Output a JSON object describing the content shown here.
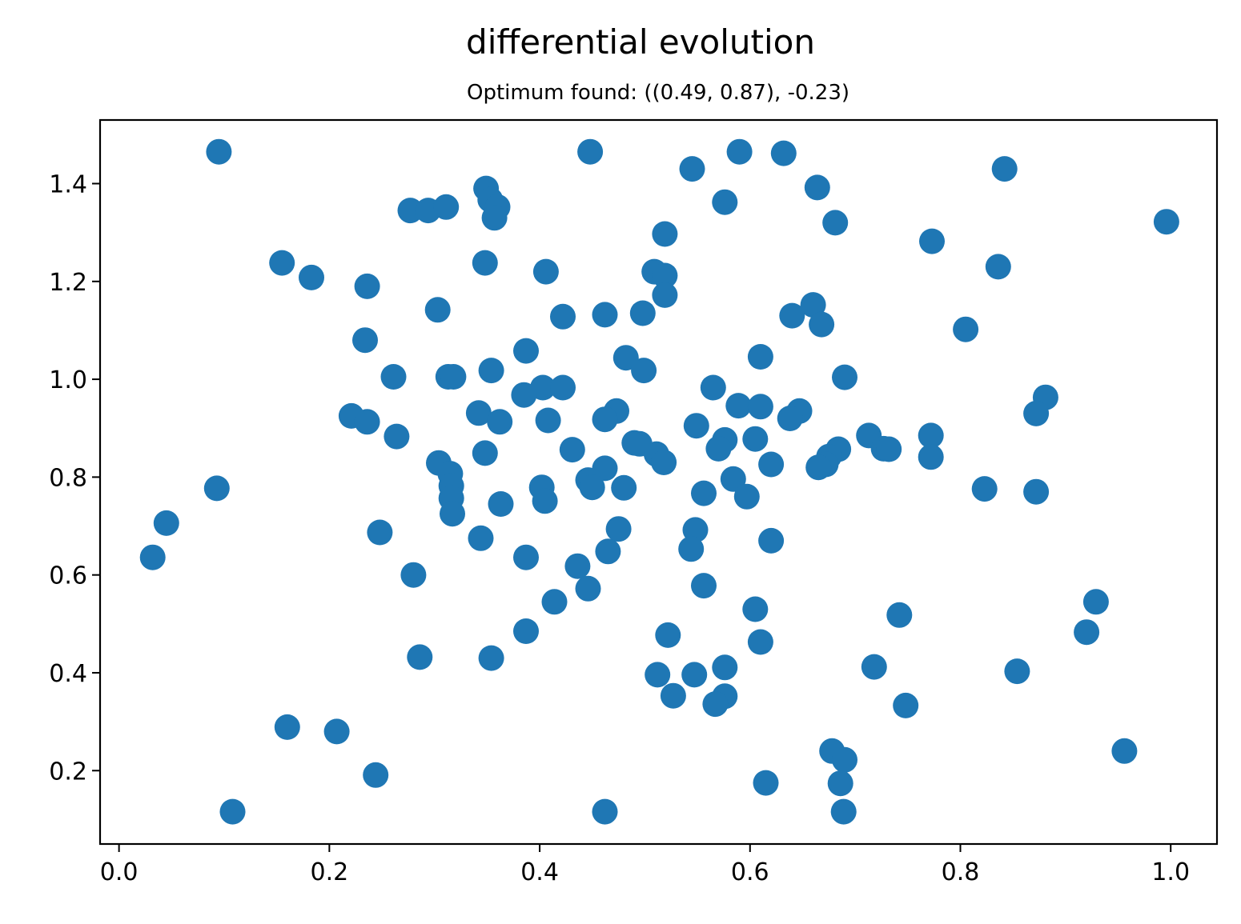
{
  "chart_data": {
    "type": "scatter",
    "title": "differential evolution",
    "subtitle": "Optimum found: ((0.49, 0.87), -0.23)",
    "xlabel": "",
    "ylabel": "",
    "xlim": [
      -0.018,
      1.044
    ],
    "ylim": [
      0.05,
      1.53
    ],
    "xticks": [
      0.0,
      0.2,
      0.4,
      0.6,
      0.8,
      1.0
    ],
    "xtick_labels": [
      "0.0",
      "0.2",
      "0.4",
      "0.6",
      "0.8",
      "1.0"
    ],
    "yticks": [
      0.2,
      0.4,
      0.6,
      0.8,
      1.0,
      1.2,
      1.4
    ],
    "ytick_labels": [
      "0.2",
      "0.4",
      "0.6",
      "0.8",
      "1.0",
      "1.2",
      "1.4"
    ],
    "grid": false,
    "legend": "none",
    "marker_color": "#1f77b4",
    "series": [
      {
        "points": [
          [
            0.095,
            1.465
          ],
          [
            0.448,
            1.465
          ],
          [
            0.59,
            1.465
          ],
          [
            0.632,
            1.462
          ],
          [
            0.545,
            1.43
          ],
          [
            0.842,
            1.43
          ],
          [
            0.349,
            1.39
          ],
          [
            0.664,
            1.392
          ],
          [
            0.353,
            1.367
          ],
          [
            0.576,
            1.362
          ],
          [
            0.277,
            1.345
          ],
          [
            0.294,
            1.345
          ],
          [
            0.311,
            1.352
          ],
          [
            0.36,
            1.352
          ],
          [
            0.357,
            1.33
          ],
          [
            0.681,
            1.32
          ],
          [
            0.996,
            1.322
          ],
          [
            0.519,
            1.297
          ],
          [
            0.773,
            1.282
          ],
          [
            0.155,
            1.238
          ],
          [
            0.348,
            1.238
          ],
          [
            0.836,
            1.23
          ],
          [
            0.183,
            1.208
          ],
          [
            0.406,
            1.22
          ],
          [
            0.509,
            1.22
          ],
          [
            0.519,
            1.212
          ],
          [
            0.236,
            1.19
          ],
          [
            0.519,
            1.172
          ],
          [
            0.66,
            1.152
          ],
          [
            0.303,
            1.142
          ],
          [
            0.498,
            1.135
          ],
          [
            0.462,
            1.132
          ],
          [
            0.422,
            1.128
          ],
          [
            0.64,
            1.13
          ],
          [
            0.668,
            1.112
          ],
          [
            0.805,
            1.102
          ],
          [
            0.234,
            1.08
          ],
          [
            0.387,
            1.058
          ],
          [
            0.482,
            1.044
          ],
          [
            0.61,
            1.046
          ],
          [
            0.354,
            1.018
          ],
          [
            0.499,
            1.018
          ],
          [
            0.261,
            1.005
          ],
          [
            0.313,
            1.005
          ],
          [
            0.318,
            1.005
          ],
          [
            0.69,
            1.004
          ],
          [
            0.565,
            0.983
          ],
          [
            0.403,
            0.983
          ],
          [
            0.422,
            0.983
          ],
          [
            0.385,
            0.968
          ],
          [
            0.881,
            0.963
          ],
          [
            0.589,
            0.946
          ],
          [
            0.61,
            0.944
          ],
          [
            0.647,
            0.935
          ],
          [
            0.473,
            0.935
          ],
          [
            0.221,
            0.925
          ],
          [
            0.342,
            0.931
          ],
          [
            0.638,
            0.92
          ],
          [
            0.872,
            0.93
          ],
          [
            0.236,
            0.913
          ],
          [
            0.362,
            0.913
          ],
          [
            0.408,
            0.916
          ],
          [
            0.462,
            0.918
          ],
          [
            0.549,
            0.905
          ],
          [
            0.264,
            0.883
          ],
          [
            0.713,
            0.885
          ],
          [
            0.772,
            0.885
          ],
          [
            0.605,
            0.878
          ],
          [
            0.576,
            0.876
          ],
          [
            0.49,
            0.87
          ],
          [
            0.495,
            0.868
          ],
          [
            0.57,
            0.858
          ],
          [
            0.727,
            0.858
          ],
          [
            0.732,
            0.857
          ],
          [
            0.431,
            0.856
          ],
          [
            0.684,
            0.857
          ],
          [
            0.348,
            0.849
          ],
          [
            0.511,
            0.847
          ],
          [
            0.675,
            0.842
          ],
          [
            0.772,
            0.841
          ],
          [
            0.518,
            0.83
          ],
          [
            0.304,
            0.829
          ],
          [
            0.62,
            0.826
          ],
          [
            0.672,
            0.826
          ],
          [
            0.665,
            0.82
          ],
          [
            0.462,
            0.818
          ],
          [
            0.315,
            0.807
          ],
          [
            0.584,
            0.796
          ],
          [
            0.446,
            0.794
          ],
          [
            0.316,
            0.782
          ],
          [
            0.402,
            0.779
          ],
          [
            0.48,
            0.778
          ],
          [
            0.45,
            0.779
          ],
          [
            0.093,
            0.777
          ],
          [
            0.823,
            0.776
          ],
          [
            0.872,
            0.77
          ],
          [
            0.556,
            0.767
          ],
          [
            0.597,
            0.76
          ],
          [
            0.316,
            0.757
          ],
          [
            0.405,
            0.751
          ],
          [
            0.363,
            0.745
          ],
          [
            0.317,
            0.725
          ],
          [
            0.045,
            0.706
          ],
          [
            0.475,
            0.694
          ],
          [
            0.548,
            0.692
          ],
          [
            0.248,
            0.687
          ],
          [
            0.344,
            0.675
          ],
          [
            0.62,
            0.67
          ],
          [
            0.465,
            0.648
          ],
          [
            0.544,
            0.653
          ],
          [
            0.032,
            0.636
          ],
          [
            0.387,
            0.636
          ],
          [
            0.436,
            0.618
          ],
          [
            0.28,
            0.6
          ],
          [
            0.556,
            0.578
          ],
          [
            0.446,
            0.572
          ],
          [
            0.414,
            0.545
          ],
          [
            0.929,
            0.545
          ],
          [
            0.605,
            0.53
          ],
          [
            0.742,
            0.518
          ],
          [
            0.387,
            0.485
          ],
          [
            0.92,
            0.483
          ],
          [
            0.522,
            0.477
          ],
          [
            0.61,
            0.463
          ],
          [
            0.286,
            0.432
          ],
          [
            0.354,
            0.43
          ],
          [
            0.718,
            0.412
          ],
          [
            0.576,
            0.411
          ],
          [
            0.854,
            0.403
          ],
          [
            0.512,
            0.396
          ],
          [
            0.547,
            0.396
          ],
          [
            0.527,
            0.353
          ],
          [
            0.576,
            0.352
          ],
          [
            0.567,
            0.336
          ],
          [
            0.748,
            0.333
          ],
          [
            0.16,
            0.289
          ],
          [
            0.207,
            0.28
          ],
          [
            0.956,
            0.24
          ],
          [
            0.678,
            0.24
          ],
          [
            0.69,
            0.222
          ],
          [
            0.244,
            0.191
          ],
          [
            0.615,
            0.175
          ],
          [
            0.686,
            0.174
          ],
          [
            0.108,
            0.116
          ],
          [
            0.462,
            0.116
          ],
          [
            0.689,
            0.116
          ]
        ]
      }
    ]
  }
}
